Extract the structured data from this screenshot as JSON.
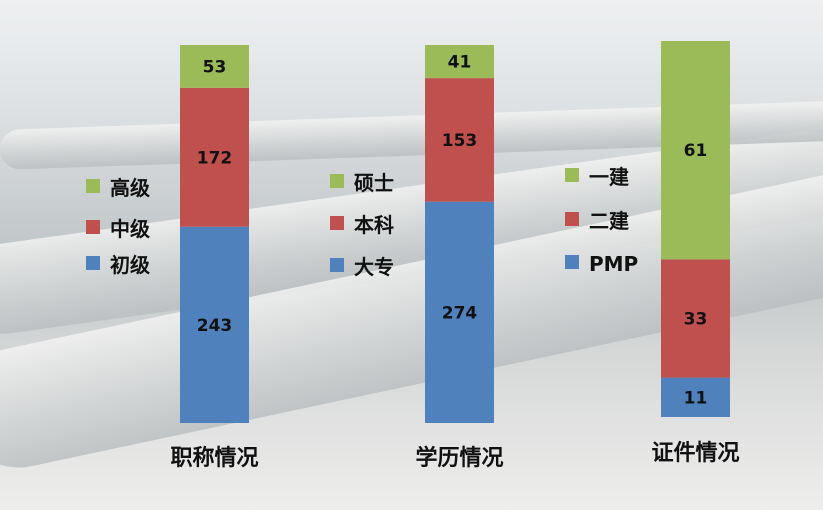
{
  "chart_data": [
    {
      "type": "bar",
      "stacked": "percent",
      "category": "职称情况",
      "series": [
        {
          "name": "初级",
          "value": 243,
          "color": "#4f81bd"
        },
        {
          "name": "中级",
          "value": 172,
          "color": "#c0504d"
        },
        {
          "name": "高级",
          "value": 53,
          "color": "#9bbb59"
        }
      ],
      "legend_placement": "left"
    },
    {
      "type": "bar",
      "stacked": "percent",
      "category": "学历情况",
      "series": [
        {
          "name": "大专",
          "value": 274,
          "color": "#4f81bd"
        },
        {
          "name": "本科",
          "value": 153,
          "color": "#c0504d"
        },
        {
          "name": "硕士",
          "value": 41,
          "color": "#9bbb59"
        }
      ],
      "legend_placement": "left"
    },
    {
      "type": "bar",
      "stacked": "percent",
      "category": "证件情况",
      "series": [
        {
          "name": "PMP",
          "value": 11,
          "color": "#4f81bd"
        },
        {
          "name": "二建",
          "value": 33,
          "color": "#c0504d"
        },
        {
          "name": "一建",
          "value": 61,
          "color": "#9bbb59"
        }
      ],
      "legend_placement": "left"
    }
  ]
}
